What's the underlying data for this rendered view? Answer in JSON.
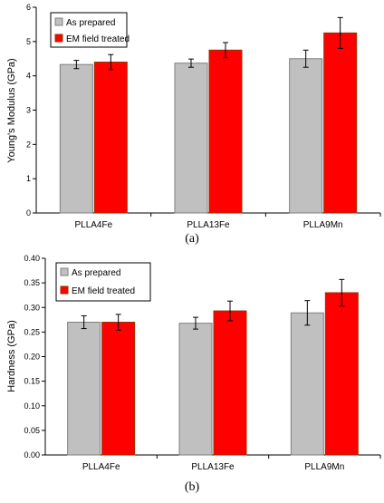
{
  "chart_data": [
    {
      "panel": "a",
      "panel_label": "(a)",
      "type": "bar",
      "ylabel": "Young's Modulus (GPa)",
      "xlabel": "",
      "categories": [
        "PLLA4Fe",
        "PLLA13Fe",
        "PLLA9Mn"
      ],
      "ylim": [
        0,
        6
      ],
      "yticks": [
        "0",
        "1",
        "2",
        "3",
        "4",
        "5",
        "6"
      ],
      "ytick_values": [
        0,
        1,
        2,
        3,
        4,
        5,
        6
      ],
      "series": [
        {
          "name": "As prepared",
          "values": [
            4.33,
            4.37,
            4.5
          ],
          "errors": [
            0.12,
            0.12,
            0.25
          ],
          "color": "#c0c0c0",
          "border": "#808080"
        },
        {
          "name": "EM field treated",
          "values": [
            4.4,
            4.75,
            5.25
          ],
          "errors": [
            0.22,
            0.22,
            0.45
          ],
          "color": "#ff0000",
          "border": "#993300"
        }
      ],
      "legend_position": "top-left",
      "grid": false
    },
    {
      "panel": "b",
      "panel_label": "(b)",
      "type": "bar",
      "ylabel": "Hardness (GPa)",
      "xlabel": "",
      "categories": [
        "PLLA4Fe",
        "PLLA13Fe",
        "PLLA9Mn"
      ],
      "ylim": [
        0,
        0.4
      ],
      "yticks": [
        "0.00",
        "0.05",
        "0.10",
        "0.15",
        "0.20",
        "0.25",
        "0.30",
        "0.35",
        "0.40"
      ],
      "ytick_values": [
        0,
        0.05,
        0.1,
        0.15,
        0.2,
        0.25,
        0.3,
        0.35,
        0.4
      ],
      "series": [
        {
          "name": "As prepared",
          "values": [
            0.27,
            0.268,
            0.289
          ],
          "errors": [
            0.013,
            0.012,
            0.025
          ],
          "color": "#c0c0c0",
          "border": "#808080"
        },
        {
          "name": "EM field treated",
          "values": [
            0.27,
            0.293,
            0.33
          ],
          "errors": [
            0.016,
            0.02,
            0.027
          ],
          "color": "#ff0000",
          "border": "#993300"
        }
      ],
      "legend_position": "top-left",
      "grid": false
    }
  ]
}
